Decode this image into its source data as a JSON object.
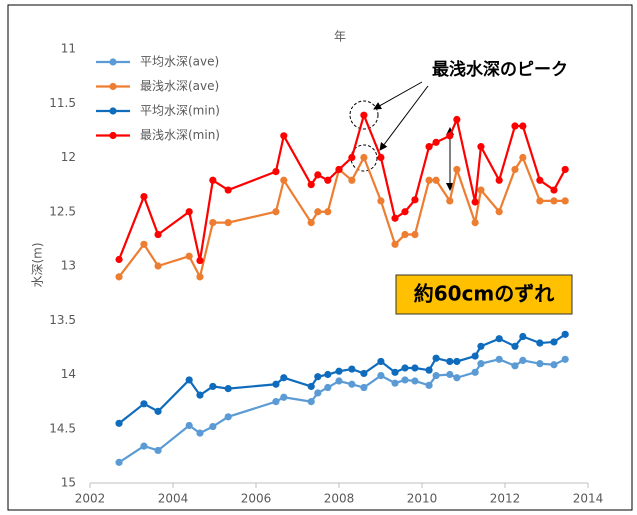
{
  "chart_data": {
    "type": "line",
    "x_label": "年",
    "y_label": "水深(m)",
    "x": [
      2002.7,
      2003.3,
      2003.64,
      2004.39,
      2004.65,
      2004.96,
      2005.33,
      2006.48,
      2006.67,
      2007.33,
      2007.49,
      2007.73,
      2008.0,
      2008.31,
      2008.6,
      2009.01,
      2009.35,
      2009.59,
      2009.83,
      2010.17,
      2010.34,
      2010.67,
      2010.84,
      2011.28,
      2011.42,
      2011.86,
      2012.24,
      2012.43,
      2012.84,
      2013.18,
      2013.45
    ],
    "series": [
      {
        "name": "平均水深(ave)",
        "color": "#5b9bd5",
        "values": [
          14.81,
          14.66,
          14.7,
          14.47,
          14.54,
          14.48,
          14.39,
          14.25,
          14.21,
          14.25,
          14.17,
          14.12,
          14.06,
          14.09,
          14.12,
          14.01,
          14.08,
          14.05,
          14.06,
          14.1,
          14.01,
          14.0,
          14.03,
          13.98,
          13.9,
          13.86,
          13.92,
          13.87,
          13.9,
          13.91,
          13.86
        ]
      },
      {
        "name": "最浅水深(ave)",
        "color": "#ed7d31",
        "values": [
          13.1,
          12.8,
          13.0,
          12.91,
          13.1,
          12.6,
          12.6,
          12.5,
          12.21,
          12.6,
          12.5,
          12.5,
          12.11,
          12.21,
          12.0,
          12.4,
          12.8,
          12.71,
          12.71,
          12.21,
          12.21,
          12.4,
          12.11,
          12.6,
          12.3,
          12.5,
          12.11,
          12.0,
          12.4,
          12.4,
          12.4
        ]
      },
      {
        "name": "平均水深(min)",
        "color": "#0f6cbd",
        "values": [
          14.45,
          14.27,
          14.34,
          14.05,
          14.19,
          14.11,
          14.13,
          14.09,
          14.03,
          14.11,
          14.02,
          14.0,
          13.97,
          13.95,
          13.99,
          13.88,
          13.98,
          13.94,
          13.94,
          13.96,
          13.85,
          13.88,
          13.88,
          13.83,
          13.74,
          13.67,
          13.74,
          13.65,
          13.71,
          13.7,
          13.63
        ]
      },
      {
        "name": "最浅水深(min)",
        "color": "#ff0000",
        "values": [
          12.94,
          12.36,
          12.71,
          12.5,
          12.95,
          12.21,
          12.3,
          12.13,
          11.8,
          12.25,
          12.16,
          12.21,
          12.11,
          12.0,
          11.61,
          12.0,
          12.56,
          12.5,
          12.39,
          11.9,
          11.86,
          11.8,
          11.65,
          12.41,
          11.9,
          12.21,
          11.71,
          11.71,
          12.21,
          12.3,
          12.11
        ]
      }
    ],
    "xlim": [
      2002,
      2014
    ],
    "xticks": [
      2002,
      2004,
      2006,
      2008,
      2010,
      2012,
      2014
    ],
    "ylim": [
      11,
      15
    ],
    "yticks": [
      11,
      11.5,
      12,
      12.5,
      13,
      13.5,
      14,
      14.5,
      15
    ],
    "y_inverted": true,
    "grid": false,
    "annotations": {
      "peak": "最浅水深のピーク",
      "gap": "約60cmのずれ"
    }
  }
}
